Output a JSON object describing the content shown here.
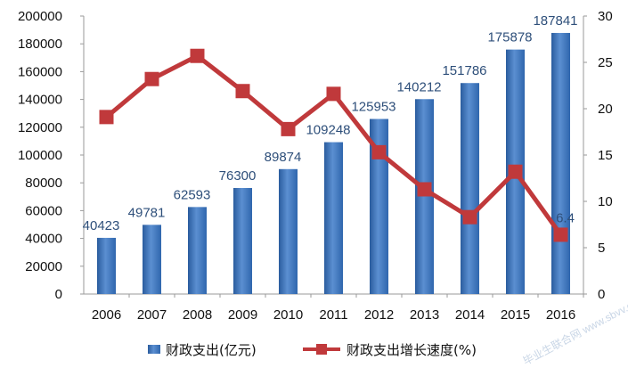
{
  "chart_data": {
    "type": "bar+line",
    "categories": [
      "2006",
      "2007",
      "2008",
      "2009",
      "2010",
      "2011",
      "2012",
      "2013",
      "2014",
      "2015",
      "2016"
    ],
    "series": [
      {
        "name": "财政支出(亿元)",
        "type": "bar",
        "axis": "left",
        "values": [
          40423,
          49781,
          62593,
          76300,
          89874,
          109248,
          125953,
          140212,
          151786,
          175878,
          187841
        ],
        "labels": [
          "40423",
          "49781",
          "62593",
          "76300",
          "89874",
          "109248",
          "125953",
          "140212",
          "151786",
          "175878",
          "187841"
        ],
        "color": "#3b72b8"
      },
      {
        "name": "财政支出增长速度(%)",
        "type": "line",
        "axis": "right",
        "values": [
          19.1,
          23.2,
          25.7,
          21.9,
          17.8,
          21.6,
          15.3,
          11.3,
          8.3,
          13.2,
          6.4
        ],
        "labels": [
          "",
          "",
          "",
          "",
          "",
          "",
          "",
          "",
          "",
          "",
          "6.4"
        ],
        "color": "#c0393b"
      }
    ],
    "y_left": {
      "min": 0,
      "max": 200000,
      "ticks": [
        0,
        20000,
        40000,
        60000,
        80000,
        100000,
        120000,
        140000,
        160000,
        180000,
        200000
      ]
    },
    "y_right": {
      "min": 0,
      "max": 30,
      "ticks": [
        0,
        5,
        10,
        15,
        20,
        25,
        30
      ]
    },
    "grid": false,
    "legend_position": "bottom"
  },
  "watermark": "毕业生联合网 www.sbvv.com"
}
